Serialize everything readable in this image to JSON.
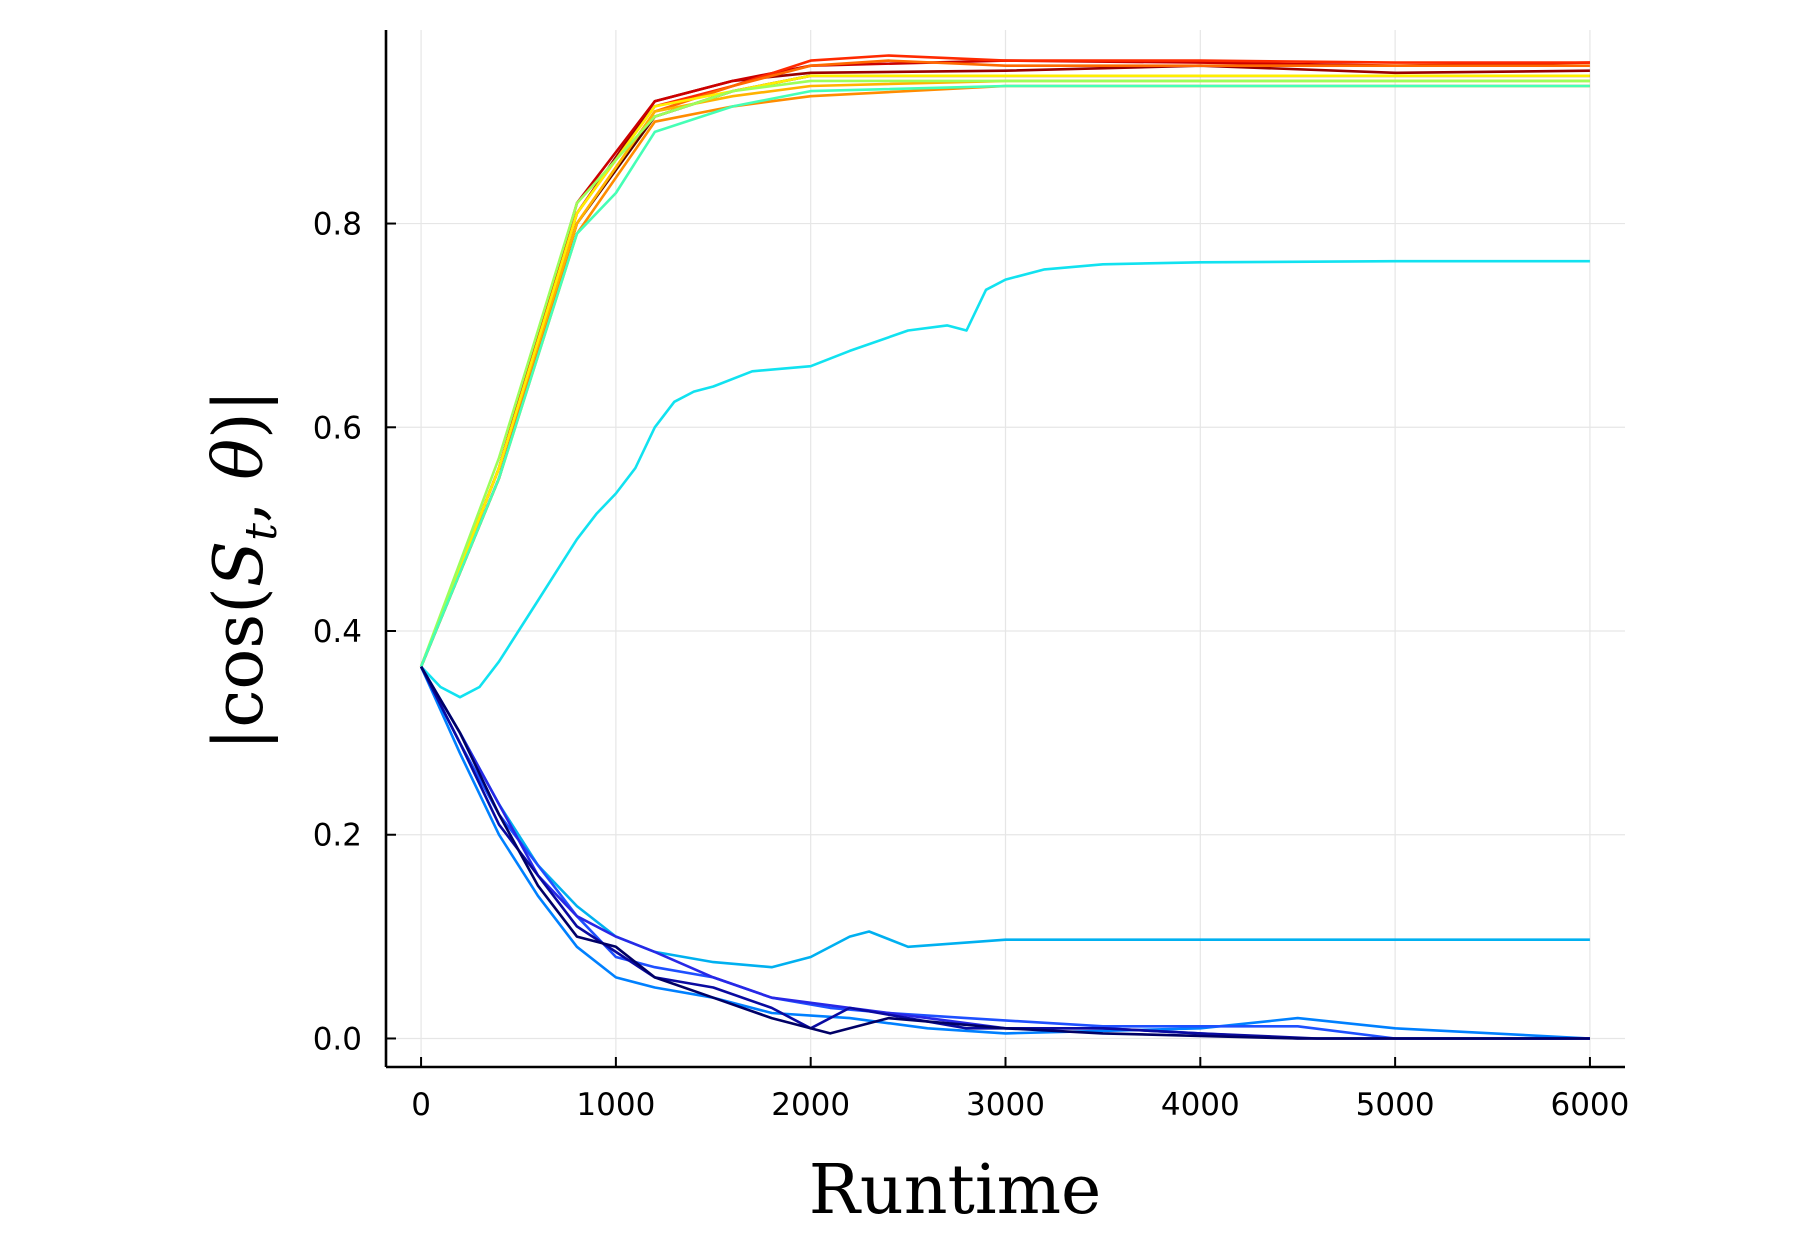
{
  "chart_data": {
    "type": "line",
    "title": "",
    "xlabel": "Runtime",
    "ylabel_parts": {
      "prefix": "|cos(",
      "S": "S",
      "t": "t",
      "sep": ", ",
      "theta": "θ",
      "suffix": ")|"
    },
    "xlim": [
      -180,
      6180
    ],
    "ylim": [
      -0.028,
      0.99
    ],
    "xticks": [
      0,
      1000,
      2000,
      3000,
      4000,
      5000,
      6000
    ],
    "xtick_labels": [
      "0",
      "1000",
      "2000",
      "3000",
      "4000",
      "5000",
      "6000"
    ],
    "yticks": [
      0.0,
      0.2,
      0.4,
      0.6,
      0.8
    ],
    "ytick_labels": [
      "0.0",
      "0.2",
      "0.4",
      "0.6",
      "0.8"
    ],
    "grid": true,
    "legend": "none",
    "series": [
      {
        "color": "#5a0000",
        "points": [
          [
            0,
            0.365
          ],
          [
            400,
            0.55
          ],
          [
            800,
            0.8
          ],
          [
            1200,
            0.905
          ],
          [
            1600,
            0.93
          ],
          [
            2000,
            0.945
          ],
          [
            3000,
            0.945
          ],
          [
            4000,
            0.945
          ],
          [
            5000,
            0.945
          ],
          [
            6000,
            0.945
          ]
        ]
      },
      {
        "color": "#9a0000",
        "points": [
          [
            0,
            0.365
          ],
          [
            400,
            0.56
          ],
          [
            800,
            0.81
          ],
          [
            1200,
            0.92
          ],
          [
            1600,
            0.94
          ],
          [
            2000,
            0.948
          ],
          [
            3000,
            0.95
          ],
          [
            4000,
            0.955
          ],
          [
            5000,
            0.948
          ],
          [
            6000,
            0.95
          ]
        ]
      },
      {
        "color": "#cc0000",
        "points": [
          [
            0,
            0.365
          ],
          [
            400,
            0.56
          ],
          [
            800,
            0.82
          ],
          [
            1200,
            0.92
          ],
          [
            1600,
            0.94
          ],
          [
            2000,
            0.955
          ],
          [
            3000,
            0.96
          ],
          [
            4000,
            0.958
          ],
          [
            5000,
            0.955
          ],
          [
            6000,
            0.958
          ]
        ]
      },
      {
        "color": "#ff2a00",
        "points": [
          [
            0,
            0.365
          ],
          [
            400,
            0.56
          ],
          [
            800,
            0.81
          ],
          [
            1200,
            0.915
          ],
          [
            1600,
            0.935
          ],
          [
            2000,
            0.96
          ],
          [
            2400,
            0.965
          ],
          [
            3000,
            0.96
          ],
          [
            4000,
            0.96
          ],
          [
            5000,
            0.958
          ],
          [
            6000,
            0.958
          ]
        ]
      },
      {
        "color": "#ff6a00",
        "points": [
          [
            0,
            0.365
          ],
          [
            400,
            0.55
          ],
          [
            800,
            0.8
          ],
          [
            1200,
            0.91
          ],
          [
            1600,
            0.935
          ],
          [
            2000,
            0.955
          ],
          [
            2400,
            0.96
          ],
          [
            3000,
            0.955
          ],
          [
            4000,
            0.955
          ],
          [
            5000,
            0.955
          ],
          [
            6000,
            0.955
          ]
        ]
      },
      {
        "color": "#ff8c00",
        "points": [
          [
            0,
            0.365
          ],
          [
            400,
            0.55
          ],
          [
            800,
            0.79
          ],
          [
            1200,
            0.9
          ],
          [
            1600,
            0.915
          ],
          [
            2000,
            0.925
          ],
          [
            3000,
            0.935
          ],
          [
            4000,
            0.935
          ],
          [
            5000,
            0.935
          ],
          [
            6000,
            0.935
          ]
        ]
      },
      {
        "color": "#ffb300",
        "points": [
          [
            0,
            0.365
          ],
          [
            400,
            0.56
          ],
          [
            800,
            0.8
          ],
          [
            1200,
            0.91
          ],
          [
            1600,
            0.925
          ],
          [
            2000,
            0.935
          ],
          [
            3000,
            0.94
          ],
          [
            4000,
            0.94
          ],
          [
            5000,
            0.94
          ],
          [
            6000,
            0.94
          ]
        ]
      },
      {
        "color": "#ffee00",
        "points": [
          [
            0,
            0.365
          ],
          [
            400,
            0.56
          ],
          [
            800,
            0.81
          ],
          [
            1200,
            0.915
          ],
          [
            1600,
            0.93
          ],
          [
            2000,
            0.945
          ],
          [
            3000,
            0.945
          ],
          [
            4000,
            0.945
          ],
          [
            5000,
            0.945
          ],
          [
            6000,
            0.945
          ]
        ]
      },
      {
        "color": "#9cff5a",
        "points": [
          [
            0,
            0.365
          ],
          [
            400,
            0.57
          ],
          [
            800,
            0.82
          ],
          [
            1200,
            0.905
          ],
          [
            1600,
            0.93
          ],
          [
            2000,
            0.94
          ],
          [
            3000,
            0.94
          ],
          [
            4000,
            0.94
          ],
          [
            5000,
            0.94
          ],
          [
            6000,
            0.94
          ]
        ]
      },
      {
        "color": "#45ffb5",
        "points": [
          [
            0,
            0.365
          ],
          [
            400,
            0.55
          ],
          [
            800,
            0.79
          ],
          [
            1000,
            0.83
          ],
          [
            1200,
            0.89
          ],
          [
            1600,
            0.915
          ],
          [
            2000,
            0.93
          ],
          [
            3000,
            0.935
          ],
          [
            4000,
            0.935
          ],
          [
            5000,
            0.935
          ],
          [
            6000,
            0.935
          ]
        ]
      },
      {
        "color": "#11e2f0",
        "points": [
          [
            0,
            0.365
          ],
          [
            100,
            0.345
          ],
          [
            200,
            0.335
          ],
          [
            300,
            0.345
          ],
          [
            400,
            0.37
          ],
          [
            500,
            0.4
          ],
          [
            600,
            0.43
          ],
          [
            700,
            0.46
          ],
          [
            800,
            0.49
          ],
          [
            900,
            0.515
          ],
          [
            1000,
            0.535
          ],
          [
            1100,
            0.56
          ],
          [
            1200,
            0.6
          ],
          [
            1300,
            0.625
          ],
          [
            1400,
            0.635
          ],
          [
            1500,
            0.64
          ],
          [
            1700,
            0.655
          ],
          [
            2000,
            0.66
          ],
          [
            2200,
            0.675
          ],
          [
            2500,
            0.695
          ],
          [
            2700,
            0.7
          ],
          [
            2800,
            0.695
          ],
          [
            2900,
            0.735
          ],
          [
            3000,
            0.745
          ],
          [
            3200,
            0.755
          ],
          [
            3500,
            0.76
          ],
          [
            4000,
            0.762
          ],
          [
            5000,
            0.763
          ],
          [
            6000,
            0.763
          ]
        ]
      },
      {
        "color": "#00b0f0",
        "points": [
          [
            0,
            0.365
          ],
          [
            200,
            0.3
          ],
          [
            400,
            0.23
          ],
          [
            600,
            0.17
          ],
          [
            800,
            0.13
          ],
          [
            1000,
            0.1
          ],
          [
            1200,
            0.085
          ],
          [
            1500,
            0.075
          ],
          [
            1800,
            0.07
          ],
          [
            2000,
            0.08
          ],
          [
            2200,
            0.1
          ],
          [
            2300,
            0.105
          ],
          [
            2500,
            0.09
          ],
          [
            3000,
            0.097
          ],
          [
            4000,
            0.097
          ],
          [
            5000,
            0.097
          ],
          [
            6000,
            0.097
          ]
        ]
      },
      {
        "color": "#0080ff",
        "points": [
          [
            0,
            0.365
          ],
          [
            200,
            0.28
          ],
          [
            400,
            0.2
          ],
          [
            600,
            0.14
          ],
          [
            800,
            0.09
          ],
          [
            1000,
            0.06
          ],
          [
            1200,
            0.05
          ],
          [
            1500,
            0.04
          ],
          [
            1800,
            0.025
          ],
          [
            2200,
            0.02
          ],
          [
            2600,
            0.01
          ],
          [
            3000,
            0.005
          ],
          [
            4000,
            0.01
          ],
          [
            4500,
            0.02
          ],
          [
            5000,
            0.01
          ],
          [
            6000,
            0.0
          ]
        ]
      },
      {
        "color": "#1e50ff",
        "points": [
          [
            0,
            0.365
          ],
          [
            200,
            0.29
          ],
          [
            400,
            0.22
          ],
          [
            600,
            0.17
          ],
          [
            800,
            0.12
          ],
          [
            1000,
            0.08
          ],
          [
            1200,
            0.07
          ],
          [
            1500,
            0.06
          ],
          [
            1800,
            0.04
          ],
          [
            2100,
            0.03
          ],
          [
            2400,
            0.025
          ],
          [
            2800,
            0.02
          ],
          [
            3500,
            0.012
          ],
          [
            4500,
            0.012
          ],
          [
            5000,
            0.0
          ],
          [
            6000,
            0.0
          ]
        ]
      },
      {
        "color": "#2828e6",
        "points": [
          [
            0,
            0.365
          ],
          [
            200,
            0.3
          ],
          [
            400,
            0.23
          ],
          [
            600,
            0.16
          ],
          [
            800,
            0.12
          ],
          [
            1000,
            0.1
          ],
          [
            1200,
            0.085
          ],
          [
            1500,
            0.06
          ],
          [
            1800,
            0.04
          ],
          [
            2200,
            0.03
          ],
          [
            2600,
            0.02
          ],
          [
            3000,
            0.01
          ],
          [
            3500,
            0.01
          ],
          [
            4000,
            0.005
          ],
          [
            4500,
            0.0
          ],
          [
            6000,
            0.0
          ]
        ]
      },
      {
        "color": "#0a0aa0",
        "points": [
          [
            0,
            0.365
          ],
          [
            200,
            0.29
          ],
          [
            400,
            0.21
          ],
          [
            600,
            0.16
          ],
          [
            800,
            0.11
          ],
          [
            1000,
            0.085
          ],
          [
            1200,
            0.06
          ],
          [
            1500,
            0.05
          ],
          [
            1800,
            0.03
          ],
          [
            2000,
            0.01
          ],
          [
            2200,
            0.03
          ],
          [
            2500,
            0.02
          ],
          [
            2800,
            0.01
          ],
          [
            3500,
            0.01
          ],
          [
            4000,
            0.005
          ],
          [
            4600,
            0.0
          ],
          [
            6000,
            0.0
          ]
        ]
      },
      {
        "color": "#000066",
        "points": [
          [
            0,
            0.365
          ],
          [
            200,
            0.3
          ],
          [
            400,
            0.22
          ],
          [
            600,
            0.15
          ],
          [
            800,
            0.1
          ],
          [
            1000,
            0.09
          ],
          [
            1200,
            0.06
          ],
          [
            1500,
            0.04
          ],
          [
            1800,
            0.02
          ],
          [
            2100,
            0.005
          ],
          [
            2400,
            0.02
          ],
          [
            2700,
            0.015
          ],
          [
            3000,
            0.01
          ],
          [
            3500,
            0.005
          ],
          [
            4500,
            0.0
          ],
          [
            6000,
            0.0
          ]
        ]
      }
    ]
  }
}
